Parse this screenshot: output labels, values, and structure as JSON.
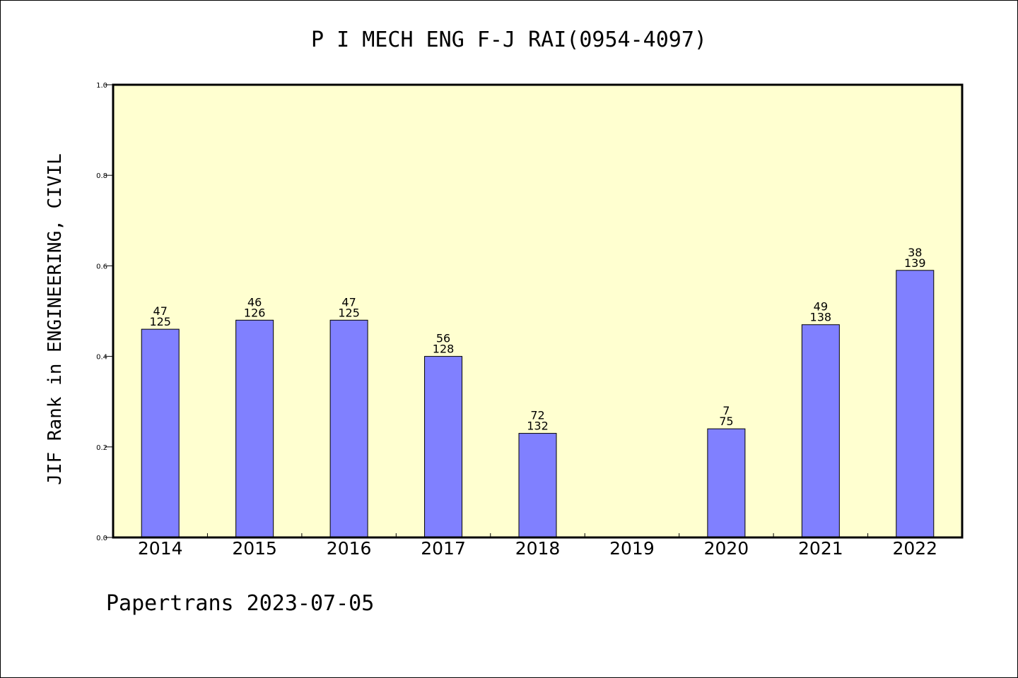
{
  "chart_data": {
    "type": "bar",
    "title": "P I MECH ENG F-J RAI(0954-4097)",
    "ylabel": "JIF Rank in ENGINEERING, CIVIL",
    "xlabel": "",
    "ylim": [
      0,
      1.0
    ],
    "yticks": [
      "0.0",
      "0.2",
      "0.4",
      "0.6",
      "0.8",
      "1.0"
    ],
    "categories": [
      "2014",
      "2015",
      "2016",
      "2017",
      "2018",
      "2019",
      "2020",
      "2021",
      "2022"
    ],
    "values": [
      0.46,
      0.48,
      0.48,
      0.4,
      0.23,
      null,
      0.24,
      0.47,
      0.59
    ],
    "rank_labels": [
      "47",
      "46",
      "47",
      "56",
      "72",
      "",
      "7",
      "49",
      "38"
    ],
    "total_labels": [
      "125",
      "126",
      "125",
      "128",
      "132",
      "",
      "75",
      "138",
      "139"
    ],
    "grid": false,
    "colors": {
      "plot_background": "#ffffd0",
      "bar_fill": "#8080ff",
      "bar_stroke": "#000000"
    },
    "footer": "Papertrans 2023-07-05"
  }
}
